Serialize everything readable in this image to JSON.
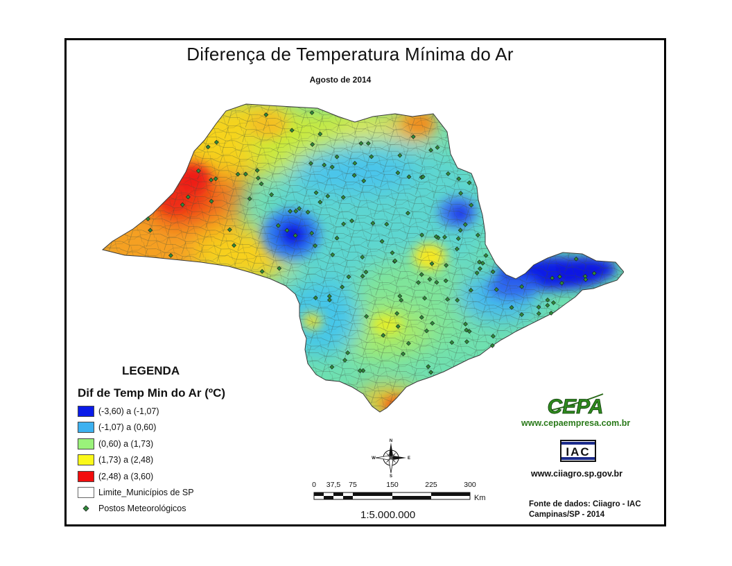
{
  "title": "Diferença de Temperatura Mínima do Ar",
  "subtitle": "Agosto de 2014",
  "legend": {
    "heading": "LEGENDA",
    "variable": "Dif de Temp Min do Ar (ºC)",
    "classes": [
      {
        "label": "(-3,60) a (-1,07)",
        "color": "#0a1be8"
      },
      {
        "label": "(-1,07) a (0,60)",
        "color": "#3db1f0"
      },
      {
        "label": "(0,60) a (1,73)",
        "color": "#9af27a"
      },
      {
        "label": "(1,73) a (2,48)",
        "color": "#fbf91a"
      },
      {
        "label": "(2,48) a (3,60)",
        "color": "#f20d0d"
      }
    ],
    "boundary_label": "Limite_Municípios de SP",
    "stations_label": "Postos Meteorológicos",
    "station_color": "#2f8a3a"
  },
  "compass": {
    "n": "N",
    "s": "S",
    "e": "E",
    "w": "W"
  },
  "scale": {
    "ticks": [
      "0",
      "37,5",
      "75",
      "150",
      "225",
      "300"
    ],
    "unit": "Km",
    "ratio": "1:5.000.000"
  },
  "logos": {
    "cepa_text": "CEPA",
    "cepa_url": "www.cepaempresa.com.br",
    "iac_text": "IAC",
    "ciiagro_url": "www.ciiagro.sp.gov.br"
  },
  "source": {
    "line1": "Fonte de dados: Ciiagro - IAC",
    "line2": "Campinas/SP - 2014"
  }
}
